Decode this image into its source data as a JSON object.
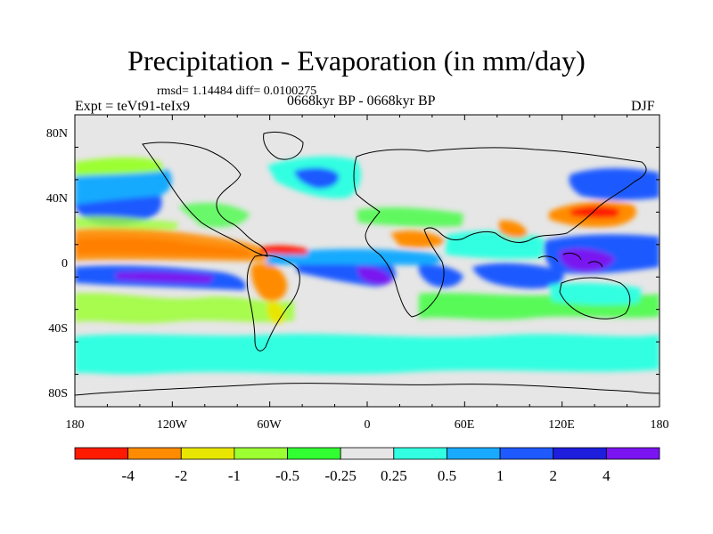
{
  "title": "Precipitation - Evaporation (in mm/day)",
  "stats": "rmsd= 1.14484 diff= 0.0100275",
  "expt": "Expt = teVt91-teIx9",
  "period": "0668kyr BP - 0668kyr BP",
  "season": "DJF",
  "axes": {
    "lon_ticks": [
      "180",
      "120W",
      "60W",
      "0",
      "60E",
      "120E",
      "180"
    ],
    "lat_ticks": [
      "80N",
      "40N",
      "0",
      "40S",
      "80S"
    ]
  },
  "colorbar": {
    "colors": [
      "#ff1a00",
      "#ff8c00",
      "#e8e600",
      "#9bff32",
      "#32ff32",
      "#e6e6e6",
      "#32ffe1",
      "#19aaff",
      "#1e5aff",
      "#1e1edc",
      "#7a14f0"
    ],
    "labels": [
      "-4",
      "-2",
      "-1",
      "-0.5",
      "-0.25",
      "0.25",
      "0.5",
      "1",
      "2",
      "4"
    ]
  },
  "colors": {
    "background": "#ffffff",
    "map_neutral": "#e6e6e6",
    "coastline": "#000000"
  }
}
